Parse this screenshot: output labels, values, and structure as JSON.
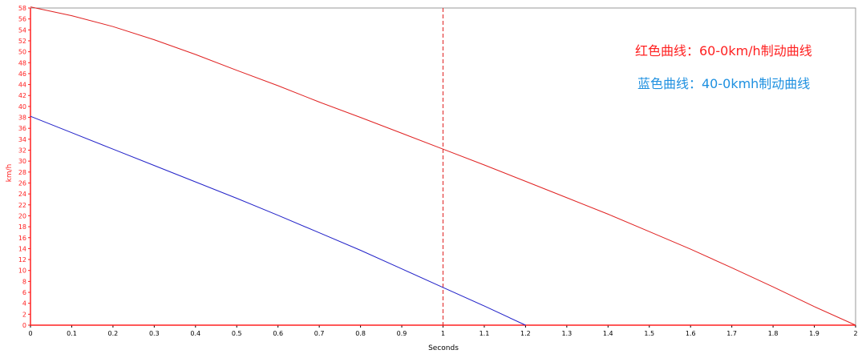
{
  "chart_data": {
    "type": "line",
    "xlabel": "Seconds",
    "ylabel": "km/h",
    "xlim": [
      0,
      2
    ],
    "ylim": [
      0,
      58
    ],
    "x_ticks": [
      "0",
      "0.1",
      "0.2",
      "0.3",
      "0.4",
      "0.5",
      "0.6",
      "0.7",
      "0.8",
      "0.9",
      "1",
      "1.1",
      "1.2",
      "1.3",
      "1.4",
      "1.5",
      "1.6",
      "1.7",
      "1.8",
      "1.9",
      "2"
    ],
    "y_ticks": [
      "0",
      "2",
      "4",
      "6",
      "8",
      "10",
      "12",
      "14",
      "16",
      "18",
      "20",
      "22",
      "24",
      "26",
      "28",
      "30",
      "32",
      "34",
      "36",
      "38",
      "40",
      "42",
      "44",
      "46",
      "48",
      "50",
      "52",
      "54",
      "56",
      "58"
    ],
    "grid": true,
    "cursor_x": 1,
    "series": [
      {
        "color": "#e02020",
        "x": [
          0,
          0.1,
          0.2,
          0.3,
          0.4,
          0.5,
          0.6,
          0.7,
          0.8,
          0.9,
          1.0,
          1.1,
          1.2,
          1.3,
          1.4,
          1.5,
          1.6,
          1.7,
          1.8,
          1.9,
          2.0
        ],
        "y": [
          58.2,
          56.6,
          54.6,
          52.2,
          49.5,
          46.6,
          43.8,
          40.8,
          38.0,
          35.1,
          32.2,
          29.3,
          26.3,
          23.3,
          20.3,
          17.1,
          13.9,
          10.5,
          7.0,
          3.4,
          0.0
        ]
      },
      {
        "color": "#2020c8",
        "x": [
          0,
          0.1,
          0.2,
          0.3,
          0.4,
          0.5,
          0.6,
          0.7,
          0.8,
          0.9,
          1.0,
          1.1,
          1.2
        ],
        "y": [
          38.2,
          35.2,
          32.2,
          29.2,
          26.2,
          23.2,
          20.1,
          16.9,
          13.7,
          10.3,
          6.9,
          3.5,
          0.0
        ]
      }
    ]
  },
  "annotations": {
    "red": "红色曲线：60-0km/h制动曲线",
    "blue": "蓝色曲线：40-0kmh制动曲线"
  }
}
